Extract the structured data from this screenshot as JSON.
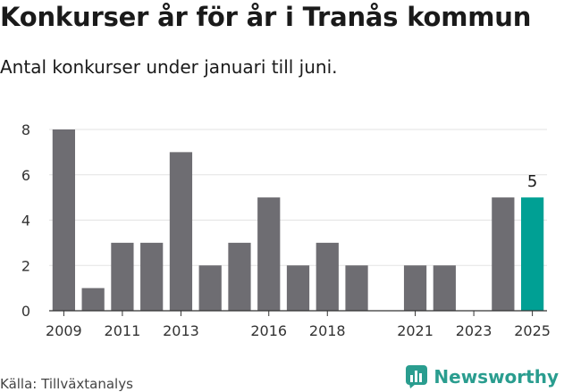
{
  "title": "Konkurser år för år i Tranås kommun",
  "subtitle": "Antal konkurser under januari till juni.",
  "source": "Källa: Tillväxtanalys",
  "brand": {
    "name": "Newsworthy",
    "icon": "bar-chart-speech-bubble-icon",
    "color": "#2a9d8f"
  },
  "chart_data": {
    "type": "bar",
    "categories": [
      "2009",
      "2010",
      "2011",
      "2012",
      "2013",
      "2014",
      "2015",
      "2016",
      "2017",
      "2018",
      "2019",
      "2020",
      "2021",
      "2022",
      "2023",
      "2024",
      "2025"
    ],
    "values": [
      8,
      1,
      3,
      3,
      7,
      2,
      3,
      5,
      2,
      3,
      2,
      0,
      2,
      2,
      0,
      5,
      5
    ],
    "tick_labels": [
      "2009",
      "2011",
      "2013",
      "2016",
      "2018",
      "2021",
      "2023",
      "2025"
    ],
    "ylim": [
      0,
      8
    ],
    "yticks": [
      0,
      2,
      4,
      6,
      8
    ],
    "highlight": {
      "category": "2025",
      "value_label": "5"
    },
    "colors": {
      "bar": "#6e6d72",
      "highlight": "#00a094",
      "grid": "#e3e3e3",
      "axis": "#333333"
    },
    "grid": true
  }
}
